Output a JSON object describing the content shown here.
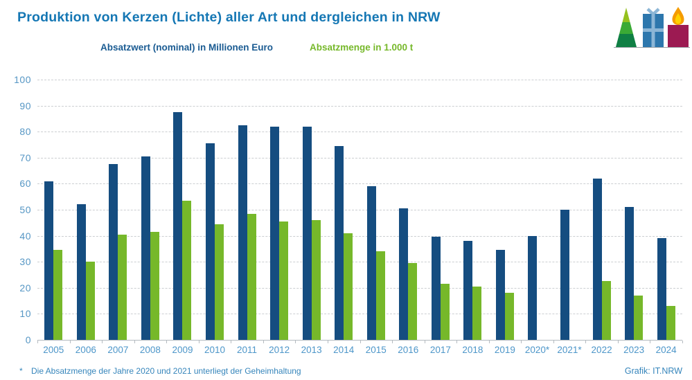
{
  "title": "Produktion von Kerzen (Lichte) aller Art und dergleichen in NRW",
  "legend": {
    "series1_label": "Absatzwert (nominal) in Millionen Euro",
    "series2_label": "Absatzmenge in 1.000 t"
  },
  "footnote": {
    "marker": "*",
    "text": "Die Absatzmenge der Jahre 2020 und 2021 unterliegt der Geheimhaltung"
  },
  "credit": "Grafik: IT.NRW",
  "colors": {
    "title_blue": "#1577b4",
    "legend_blue": "#1a5b92",
    "bar_blue": "#154d80",
    "bar_green": "#76b82a",
    "axis_label_blue": "#4d96c9",
    "gridline_gray": "#cbced1",
    "axis_line_gray": "#b4bac0",
    "footnote_blue": "#3585bb"
  },
  "logo": {
    "items": [
      "christmas-tree",
      "gift",
      "candle"
    ],
    "tree_colors": [
      "#95c11f",
      "#3aaa35",
      "#0f7f44"
    ],
    "gift_color": "#2d77ad",
    "ribbon_color": "#8cb6d6",
    "candle_color": "#9c1a52",
    "flame_outer": "#f59c00",
    "flame_inner": "#ffd200"
  },
  "chart_data": {
    "type": "bar",
    "title": "Produktion von Kerzen (Lichte) aller Art und dergleichen in NRW",
    "categories": [
      "2005",
      "2006",
      "2007",
      "2008",
      "2009",
      "2010",
      "2011",
      "2012",
      "2013",
      "2014",
      "2015",
      "2016",
      "2017",
      "2018",
      "2019",
      "2020*",
      "2021*",
      "2022",
      "2023",
      "2024"
    ],
    "series": [
      {
        "name": "Absatzwert (nominal) in Millionen Euro",
        "color": "#154d80",
        "values": [
          61,
          52,
          67.5,
          70.5,
          87.5,
          75.5,
          82.5,
          82,
          82,
          74.5,
          59,
          50.5,
          39.5,
          38,
          34.5,
          40,
          50,
          62,
          51,
          39
        ]
      },
      {
        "name": "Absatzmenge in 1.000 t",
        "color": "#76b82a",
        "values": [
          34.5,
          30,
          40.5,
          41.5,
          53.5,
          44.5,
          48.5,
          45.5,
          46,
          41,
          34,
          29.5,
          21.5,
          20.5,
          18,
          null,
          null,
          22.5,
          17,
          13
        ]
      }
    ],
    "xlabel": "",
    "ylabel": "",
    "ylim": [
      0,
      100
    ],
    "ytick_step": 10,
    "grid": "horizontal-dashed",
    "legend_position": "top",
    "note": "2020 and 2021 Absatzmenge values withheld (Geheimhaltung)"
  }
}
